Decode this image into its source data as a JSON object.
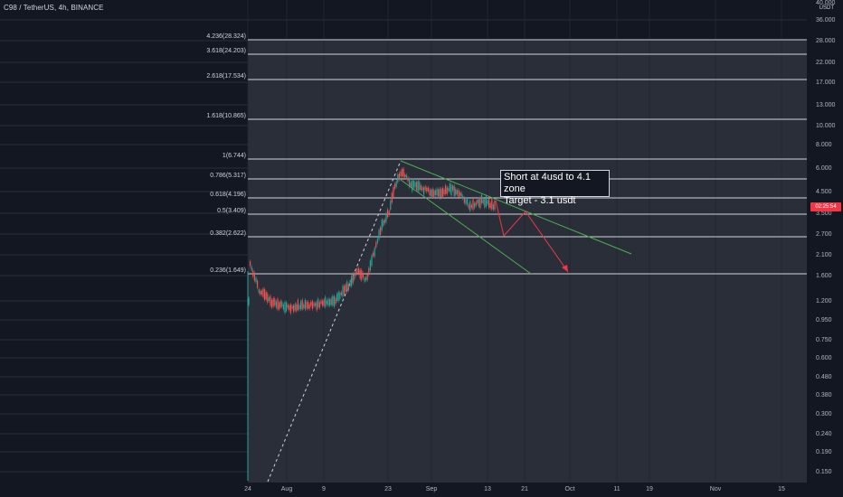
{
  "header": {
    "title": "C98 / TetherUS, 4h, BINANCE"
  },
  "axis": {
    "unit": "USDT",
    "price_labels": [
      "40.000",
      "36.000",
      "28.000",
      "22.000",
      "17.000",
      "13.000",
      "10.000",
      "8.000",
      "6.000",
      "4.500",
      "3.500",
      "2.700",
      "2.100",
      "1.600",
      "1.200",
      "0.950",
      "0.750",
      "0.600",
      "0.480",
      "0.380",
      "0.300",
      "0.240",
      "0.190",
      "0.150"
    ],
    "time_labels": [
      "24",
      "Aug",
      "9",
      "23",
      "Sep",
      "13",
      "21",
      "Oct",
      "11",
      "19",
      "Nov",
      "15"
    ],
    "current_price_tag": "02:25:54"
  },
  "fib_levels": [
    {
      "label": "4.236(28.324)"
    },
    {
      "label": "3.618(24.203)"
    },
    {
      "label": "2.618(17.534)"
    },
    {
      "label": "1.618(10.865)"
    },
    {
      "label": "1(6.744)"
    },
    {
      "label": "0.786(5.317)"
    },
    {
      "label": "0.618(4.196)"
    },
    {
      "label": "0.5(3.409)"
    },
    {
      "label": "0.382(2.622)"
    },
    {
      "label": "0.236(1.649)"
    }
  ],
  "annotation": {
    "line1": "Short at 4usd to 4.1 zone",
    "line2": "Target - 3.1 usdt"
  },
  "colors": {
    "background": "#131722",
    "fib_zone": "#2a2e39",
    "fib_line": "#d1d4dc",
    "up_candle": "#26a69a",
    "down_candle": "#ef5350",
    "channel_line": "#4caf50",
    "projection": "#f23645",
    "price_tag": "#f23645"
  }
}
